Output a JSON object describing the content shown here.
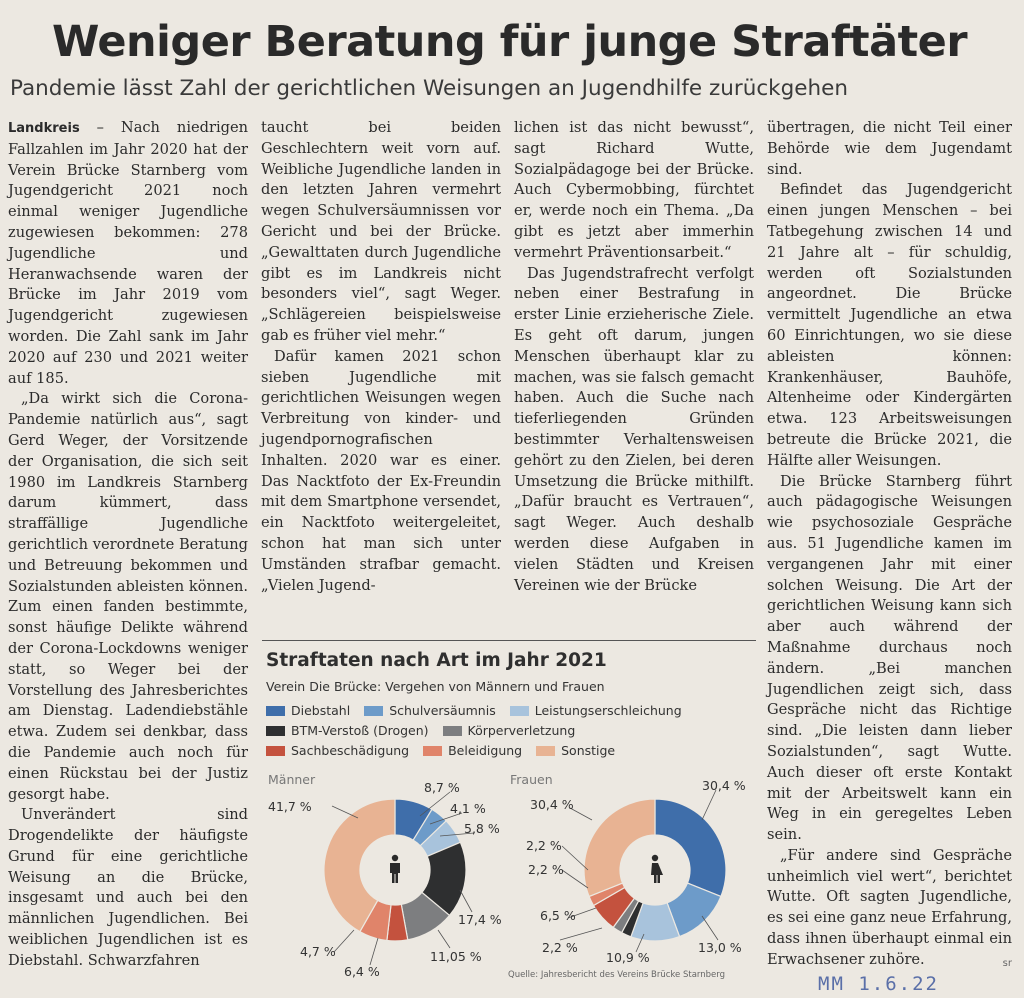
{
  "article": {
    "headline": "Weniger Beratung für junge Straftäter",
    "subheadline": "Pandemie lässt Zahl der gerichtlichen Weisungen an Jugendhilfe zurückgehen",
    "dateline": "Landkreis",
    "col1": [
      " – Nach niedrigen Fallzahlen im Jahr 2020 hat der Verein Brücke Starnberg vom Jugendgericht 2021 noch einmal weniger Jugendliche zugewiesen bekommen: 278 Jugendliche und Heranwachsende waren der Brücke im Jahr 2019 vom Jugendgericht zugewiesen worden. Die Zahl sank im Jahr 2020 auf 230 und 2021 weiter auf 185.",
      "„Da wirkt sich die Corona-Pandemie natürlich aus“, sagt Gerd Weger, der Vorsitzende der Organisation, die sich seit 1980 im Landkreis Starnberg darum kümmert, dass straffällige Jugendliche gerichtlich verordnete Beratung und Betreuung bekommen und Sozialstunden ableisten können. Zum einen fanden bestimmte, sonst häufige Delikte während der Corona-Lockdowns weniger statt, so Weger bei der Vorstellung des Jahresberichtes am Dienstag. Ladendiebstähle etwa. Zudem sei denkbar, dass die Pandemie auch noch für einen Rückstau bei der Justiz gesorgt habe.",
      "Unverändert sind Drogendelikte der häufigste Grund für eine gerichtliche Weisung an die Brücke, insgesamt und auch bei den männlichen Jugendlichen. Bei weiblichen Jugendlichen ist es Diebstahl. Schwarzfahren"
    ],
    "col2": [
      "taucht bei beiden Geschlechtern weit vorn auf. Weibliche Jugendliche landen in den letzten Jahren vermehrt wegen Schulversäumnissen vor Gericht und bei der Brücke. „Gewalttaten durch Jugendliche gibt es im Landkreis nicht besonders viel“, sagt Weger. „Schlägereien beispielsweise gab es früher viel mehr.“",
      "Dafür kamen 2021 schon sieben Jugendliche mit gerichtlichen Weisungen wegen Verbreitung von kinder- und jugendpornografischen Inhalten. 2020 war es einer. Das Nacktfoto der Ex-Freundin mit dem Smartphone versendet, ein Nacktfoto weitergeleitet, schon hat man sich unter Umständen strafbar gemacht. „Vielen Jugend-"
    ],
    "col3": [
      "lichen ist das nicht bewusst“, sagt Richard Wutte, Sozialpädagoge bei der Brücke. Auch Cybermobbing, fürchtet er, werde noch ein Thema. „Da gibt es jetzt aber immerhin vermehrt Präventionsarbeit.“",
      "Das Jugendstrafrecht verfolgt neben einer Bestrafung in erster Linie erzieherische Ziele. Es geht oft darum, jungen Menschen überhaupt klar zu machen, was sie falsch gemacht haben. Auch die Suche nach tieferliegenden Gründen bestimmter Verhaltensweisen gehört zu den Zielen, bei deren Umsetzung die Brücke mithilft. „Dafür braucht es Vertrauen“, sagt Weger. Auch deshalb werden diese Aufgaben in vielen Städten und Kreisen Vereinen wie der Brücke"
    ],
    "col4": [
      "übertragen, die nicht Teil einer Behörde wie dem Jugendamt sind.",
      "Befindet das Jugendgericht einen jungen Menschen – bei Tatbegehung zwischen 14 und 21 Jahre alt – für schuldig, werden oft Sozialstunden angeordnet. Die Brücke vermittelt Jugendliche an etwa 60 Einrichtungen, wo sie diese ableisten können: Krankenhäuser, Bauhöfe, Altenheime oder Kindergärten etwa. 123 Arbeitsweisungen betreute die Brücke 2021, die Hälfte aller Weisungen.",
      "Die Brücke Starnberg führt auch pädagogische Weisungen wie psychosoziale Gespräche aus. 51 Jugendliche kamen im vergangenen Jahr mit einer solchen Weisung. Die Art der gerichtlichen Weisung kann sich aber auch während der Maßnahme durchaus noch ändern. „Bei manchen Jugendlichen zeigt sich, dass Gespräche nicht das Richtige sind. „Die leisten dann lieber Sozialstunden“, sagt Wutte. Auch dieser oft erste Kontakt mit der Arbeitswelt kann ein Weg in ein geregeltes Leben sein.",
      "„Für andere sind Gespräche unheimlich viel wert“, berichtet Wutte. Oft sagten Jugendliche, es sei eine ganz neue Erfahrung, dass ihnen überhaupt einmal ein Erwachsener zuhöre."
    ],
    "author": "sr"
  },
  "stamp": "MM 1.6.22",
  "chart_data": {
    "type": "pie",
    "title": "Straftaten nach Art im Jahr 2021",
    "subtitle": "Verein Die Brücke: Vergehen von Männern und Frauen",
    "categories": [
      "Diebstahl",
      "Schulversäumnis",
      "Leistungserschleichung",
      "BTM-Verstoß (Drogen)",
      "Körperverletzung",
      "Sachbeschädigung",
      "Beleidigung",
      "Sonstige"
    ],
    "colors": [
      "#3f6eaa",
      "#6d9bc9",
      "#a8c3dc",
      "#2e2f30",
      "#7d7e80",
      "#c4523e",
      "#e0846a",
      "#e8b393"
    ],
    "series": [
      {
        "name": "Männer",
        "values": [
          8.7,
          4.1,
          5.8,
          17.4,
          11.05,
          4.7,
          6.4,
          41.7
        ],
        "labels": [
          "8,7 %",
          "4,1 %",
          "5,8 %",
          "17,4 %",
          "11,05 %",
          "4,7 %",
          "6,4 %",
          "41,7 %"
        ]
      },
      {
        "name": "Frauen",
        "values": [
          30.4,
          13.0,
          10.9,
          2.2,
          2.2,
          6.5,
          2.2,
          30.4
        ],
        "labels": [
          "30,4 %",
          "13,0 %",
          "10,9 %",
          "2,2 %",
          "2,2 %",
          "6,5 %",
          "2,2 %",
          "30,4 %"
        ]
      }
    ],
    "source": "Quelle: Jahresbericht des Vereins Brücke Starnberg"
  }
}
